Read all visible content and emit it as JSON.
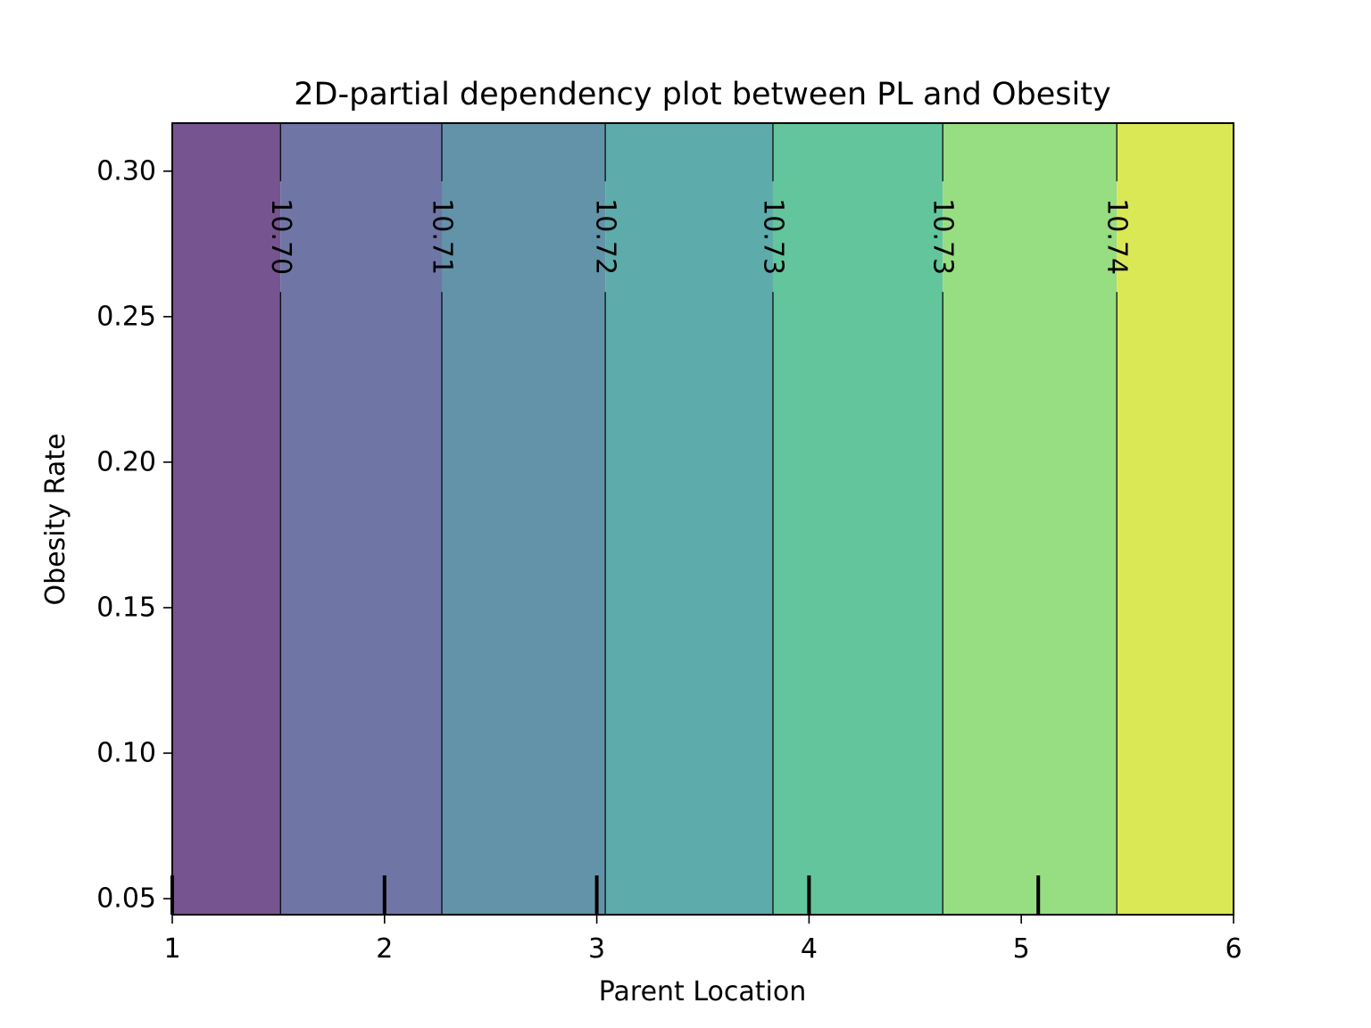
{
  "chart_data": {
    "type": "contourf",
    "title": "2D-partial dependency plot between PL and Obesity",
    "xlabel": "Parent Location",
    "ylabel": "Obesity Rate",
    "xlim": [
      1,
      6
    ],
    "ylim": [
      0.0445,
      0.3165
    ],
    "x_ticks": [
      1,
      2,
      3,
      4,
      5,
      6
    ],
    "x_tick_labels": [
      "1",
      "2",
      "3",
      "4",
      "5",
      "6"
    ],
    "y_ticks": [
      0.05,
      0.1,
      0.15,
      0.2,
      0.25,
      0.3
    ],
    "y_tick_labels": [
      "0.05",
      "0.10",
      "0.15",
      "0.20",
      "0.25",
      "0.30"
    ],
    "bands": [
      {
        "x_start": 1.0,
        "x_end": 1.51,
        "color": "#765490"
      },
      {
        "x_start": 1.51,
        "x_end": 2.27,
        "color": "#6f76a5"
      },
      {
        "x_start": 2.27,
        "x_end": 3.04,
        "color": "#6393a9"
      },
      {
        "x_start": 3.04,
        "x_end": 3.83,
        "color": "#5dabab"
      },
      {
        "x_start": 3.83,
        "x_end": 4.63,
        "color": "#63c59c"
      },
      {
        "x_start": 4.63,
        "x_end": 5.45,
        "color": "#97dd81"
      },
      {
        "x_start": 5.45,
        "x_end": 6.0,
        "color": "#dbe856"
      }
    ],
    "contour_lines": [
      {
        "x": 1.51,
        "label": "10.70"
      },
      {
        "x": 2.27,
        "label": "10.71"
      },
      {
        "x": 3.04,
        "label": "10.72"
      },
      {
        "x": 3.83,
        "label": "10.73"
      },
      {
        "x": 4.63,
        "label": "10.73"
      },
      {
        "x": 5.45,
        "label": "10.74"
      }
    ],
    "contour_label_y": 0.2775,
    "deciles_x": [
      1.0,
      2.0,
      3.0,
      4.0,
      5.08
    ],
    "grid": false
  }
}
